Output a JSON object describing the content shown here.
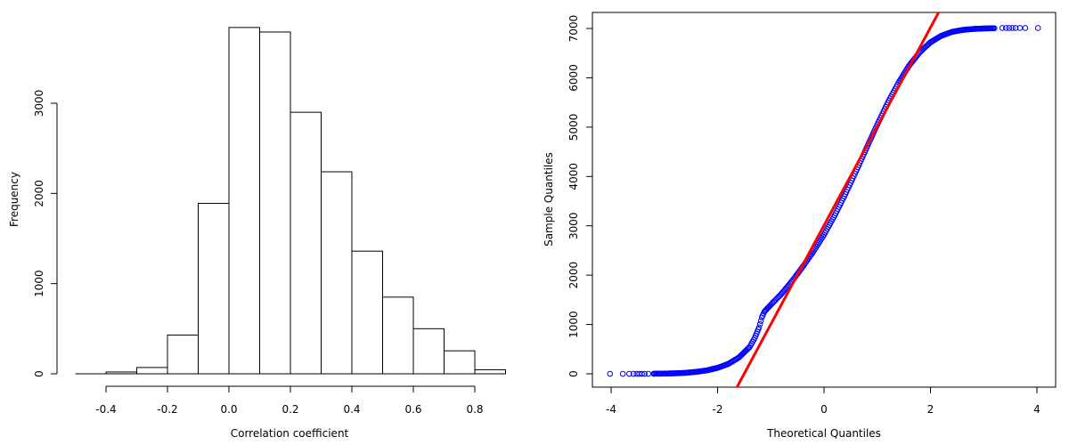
{
  "chart_data": [
    {
      "type": "bar",
      "title": "",
      "xlabel": "Correlation coefficient",
      "ylabel": "Frequency",
      "xlim": [
        -0.5,
        0.9
      ],
      "ylim": [
        0,
        3900
      ],
      "xticks": [
        -0.4,
        -0.2,
        0.0,
        0.2,
        0.4,
        0.6,
        0.8
      ],
      "xtick_labels": [
        "-0.4",
        "-0.2",
        "0.0",
        "0.2",
        "0.4",
        "0.6",
        "0.8"
      ],
      "yticks": [
        0,
        1000,
        2000,
        3000
      ],
      "ytick_labels": [
        "0",
        "1000",
        "2000",
        "3000"
      ],
      "bins": [
        {
          "from": -0.4,
          "to": -0.3,
          "count": 20
        },
        {
          "from": -0.3,
          "to": -0.2,
          "count": 70
        },
        {
          "from": -0.2,
          "to": -0.1,
          "count": 430
        },
        {
          "from": -0.1,
          "to": 0.0,
          "count": 1890
        },
        {
          "from": 0.0,
          "to": 0.1,
          "count": 3840
        },
        {
          "from": 0.1,
          "to": 0.2,
          "count": 3790
        },
        {
          "from": 0.2,
          "to": 0.3,
          "count": 2900
        },
        {
          "from": 0.3,
          "to": 0.4,
          "count": 2240
        },
        {
          "from": 0.4,
          "to": 0.5,
          "count": 1360
        },
        {
          "from": 0.5,
          "to": 0.6,
          "count": 850
        },
        {
          "from": 0.6,
          "to": 0.7,
          "count": 500
        },
        {
          "from": 0.7,
          "to": 0.8,
          "count": 255
        },
        {
          "from": 0.8,
          "to": 0.9,
          "count": 45
        }
      ],
      "colors": {
        "bar_fill": "#ffffff",
        "bar_stroke": "#000000"
      },
      "grid": false
    },
    {
      "type": "scatter",
      "title": "",
      "xlabel": "Theoretical Quantiles",
      "ylabel": "Sample Quantiles",
      "xlim": [
        -4.2,
        4.4
      ],
      "ylim": [
        -200,
        7250
      ],
      "xticks": [
        -4,
        -2,
        0,
        2,
        4
      ],
      "xtick_labels": [
        "-4",
        "-2",
        "0",
        "2",
        "4"
      ],
      "yticks": [
        0,
        1000,
        2000,
        3000,
        4000,
        5000,
        6000,
        7000
      ],
      "ytick_labels": [
        "0",
        "1000",
        "2000",
        "3000",
        "4000",
        "5000",
        "6000",
        "7000"
      ],
      "points": [
        [
          -4.02,
          0
        ],
        [
          -3.78,
          0
        ],
        [
          -3.66,
          0
        ],
        [
          -3.58,
          0
        ],
        [
          -3.52,
          0
        ],
        [
          -3.47,
          0
        ],
        [
          -3.42,
          0
        ],
        [
          -3.37,
          0
        ],
        [
          -3.3,
          0
        ],
        [
          -3.2,
          2
        ],
        [
          -3.0,
          5
        ],
        [
          -2.8,
          10
        ],
        [
          -2.6,
          20
        ],
        [
          -2.4,
          40
        ],
        [
          -2.2,
          70
        ],
        [
          -2.0,
          120
        ],
        [
          -1.8,
          200
        ],
        [
          -1.6,
          330
        ],
        [
          -1.4,
          540
        ],
        [
          -1.3,
          730
        ],
        [
          -1.22,
          940
        ],
        [
          -1.17,
          1140
        ],
        [
          -1.12,
          1260
        ],
        [
          -1.0,
          1400
        ],
        [
          -0.8,
          1620
        ],
        [
          -0.6,
          1880
        ],
        [
          -0.4,
          2170
        ],
        [
          -0.2,
          2480
        ],
        [
          0.0,
          2820
        ],
        [
          0.2,
          3210
        ],
        [
          0.4,
          3640
        ],
        [
          0.6,
          4100
        ],
        [
          0.8,
          4580
        ],
        [
          1.0,
          5050
        ],
        [
          1.2,
          5500
        ],
        [
          1.4,
          5900
        ],
        [
          1.6,
          6250
        ],
        [
          1.8,
          6520
        ],
        [
          2.0,
          6720
        ],
        [
          2.2,
          6850
        ],
        [
          2.4,
          6930
        ],
        [
          2.6,
          6970
        ],
        [
          2.8,
          6990
        ],
        [
          3.0,
          7000
        ],
        [
          3.2,
          7005
        ],
        [
          3.35,
          7010
        ],
        [
          3.42,
          7010
        ],
        [
          3.48,
          7010
        ],
        [
          3.54,
          7010
        ],
        [
          3.6,
          7010
        ],
        [
          3.68,
          7010
        ],
        [
          3.78,
          7010
        ],
        [
          4.02,
          7010
        ]
      ],
      "reference_line": {
        "x": [
          -1.75,
          2.2
        ],
        "y": [
          -500,
          7420
        ]
      },
      "colors": {
        "points": "#0000ff",
        "line": "#ff0000"
      },
      "grid": false
    }
  ]
}
